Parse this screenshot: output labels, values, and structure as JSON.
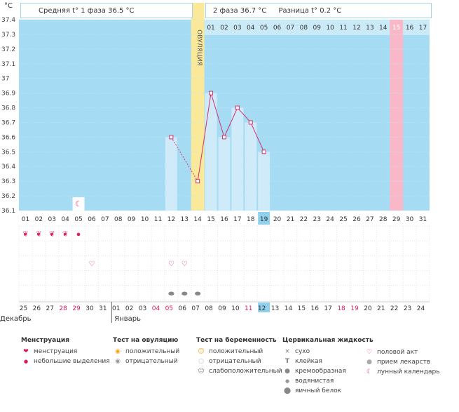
{
  "header": {
    "phase1_label": "Средняя t° 1 фаза 36.5 °C",
    "phase2_label": "2 фаза 36.7 °C",
    "diff_label": "Разница t° 0.2 °C"
  },
  "colors": {
    "plot_bg": "#a6dcf3",
    "ovulation": "#fbe99a",
    "pink_col": "#f8b8c8",
    "bar": "#cfeaf8",
    "line": "#d0306a",
    "today": "#8fd0ec"
  },
  "chart_data": {
    "type": "line",
    "title": "",
    "ylabel": "°C",
    "ylim": [
      36.1,
      37.4
    ],
    "yticks": [
      "37.4",
      "37.3",
      "37.2",
      "37.1",
      "37",
      "36.9",
      "36.8",
      "36.7",
      "36.6",
      "36.5",
      "36.4",
      "36.3",
      "36.2",
      "36.1"
    ],
    "cycle_days": [
      "01",
      "02",
      "03",
      "04",
      "05",
      "06",
      "07",
      "08",
      "09",
      "10",
      "11",
      "12",
      "13",
      "14",
      "15",
      "16",
      "17",
      "18",
      "19",
      "20",
      "21",
      "22",
      "23",
      "24",
      "25",
      "26",
      "27",
      "28",
      "29",
      "30",
      "31"
    ],
    "luteal_days": [
      "01",
      "02",
      "03",
      "04",
      "05",
      "06",
      "07",
      "08",
      "09",
      "10",
      "11",
      "12",
      "13",
      "14",
      "15",
      "16",
      "17"
    ],
    "ovulation_label": "ОВУЛЯЦИЯ",
    "ovulation_day": "14",
    "highlight_day": "29",
    "today_day": "19",
    "temps": [
      {
        "day": "12",
        "t": 36.6
      },
      {
        "day": "14",
        "t": 36.3
      },
      {
        "day": "15",
        "t": 36.9
      },
      {
        "day": "16",
        "t": 36.6
      },
      {
        "day": "17",
        "t": 36.8
      },
      {
        "day": "18",
        "t": 36.7
      },
      {
        "day": "19",
        "t": 36.5
      }
    ],
    "dashed_segment": [
      "12",
      "14"
    ],
    "menstruation_days": [
      "01",
      "02",
      "03",
      "04"
    ],
    "spotting_days": [
      "05"
    ],
    "moon_day": "05",
    "intercourse_days": [
      "06",
      "12",
      "13"
    ],
    "drop_days": [
      "12",
      "13",
      "14"
    ],
    "dates": [
      {
        "d": "25",
        "red": false
      },
      {
        "d": "26",
        "red": false
      },
      {
        "d": "27",
        "red": false
      },
      {
        "d": "28",
        "red": true
      },
      {
        "d": "29",
        "red": true
      },
      {
        "d": "30",
        "red": false
      },
      {
        "d": "31",
        "red": false
      },
      {
        "d": "01",
        "red": false
      },
      {
        "d": "02",
        "red": false
      },
      {
        "d": "03",
        "red": false
      },
      {
        "d": "04",
        "red": true
      },
      {
        "d": "05",
        "red": true
      },
      {
        "d": "06",
        "red": false
      },
      {
        "d": "07",
        "red": false
      },
      {
        "d": "08",
        "red": false
      },
      {
        "d": "09",
        "red": false
      },
      {
        "d": "10",
        "red": false
      },
      {
        "d": "11",
        "red": true
      },
      {
        "d": "12",
        "red": false
      },
      {
        "d": "13",
        "red": false
      },
      {
        "d": "14",
        "red": false
      },
      {
        "d": "15",
        "red": false
      },
      {
        "d": "16",
        "red": false
      },
      {
        "d": "17",
        "red": false
      },
      {
        "d": "18",
        "red": true
      },
      {
        "d": "19",
        "red": true
      },
      {
        "d": "20",
        "red": false
      },
      {
        "d": "21",
        "red": false
      },
      {
        "d": "22",
        "red": false
      },
      {
        "d": "23",
        "red": false
      },
      {
        "d": "24",
        "red": false
      }
    ],
    "months": [
      "Декабрь",
      "Январь"
    ]
  },
  "legend": {
    "menstruation": {
      "title": "Менструация",
      "items": [
        {
          "icon": "blood-drops-icon",
          "label": "менструация"
        },
        {
          "icon": "small-drop-icon",
          "label": "небольшие выделения"
        }
      ]
    },
    "ovulation_test": {
      "title": "Тест на овуляцию",
      "items": [
        {
          "icon": "sun-yellow-icon",
          "label": "положительный"
        },
        {
          "icon": "sun-gray-icon",
          "label": "отрицательный"
        }
      ]
    },
    "pregnancy_test": {
      "title": "Тест на беременность",
      "items": [
        {
          "icon": "smile-yellow-icon",
          "label": "положительный"
        },
        {
          "icon": "circle-white-icon",
          "label": "отрицательный"
        },
        {
          "icon": "smile-gray-icon",
          "label": "слабоположительный"
        }
      ]
    },
    "cervical": {
      "title": "Цервикальная жидкость",
      "items": [
        {
          "icon": "cross-icon",
          "label": "сухо"
        },
        {
          "icon": "t-shape-icon",
          "label": "клейкая"
        },
        {
          "icon": "cream-icon",
          "label": "кремообразная"
        },
        {
          "icon": "water-drop-icon",
          "label": "водянистая"
        },
        {
          "icon": "egg-drop-icon",
          "label": "яичный белок"
        }
      ]
    },
    "other": {
      "items": [
        {
          "icon": "heart-icon",
          "label": "половой акт"
        },
        {
          "icon": "pill-icon",
          "label": "прием лекарств"
        },
        {
          "icon": "moon-icon",
          "label": "лунный календарь"
        }
      ]
    }
  }
}
